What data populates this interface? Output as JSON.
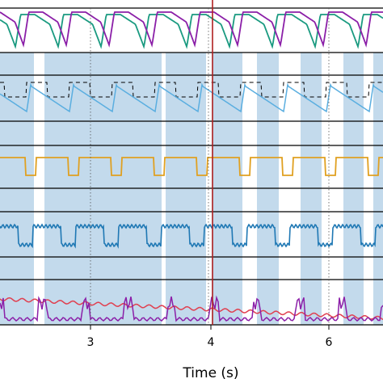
{
  "x_axis": {
    "label": "Time (s)",
    "ticks": [
      "3",
      "4",
      "6"
    ]
  }
}
